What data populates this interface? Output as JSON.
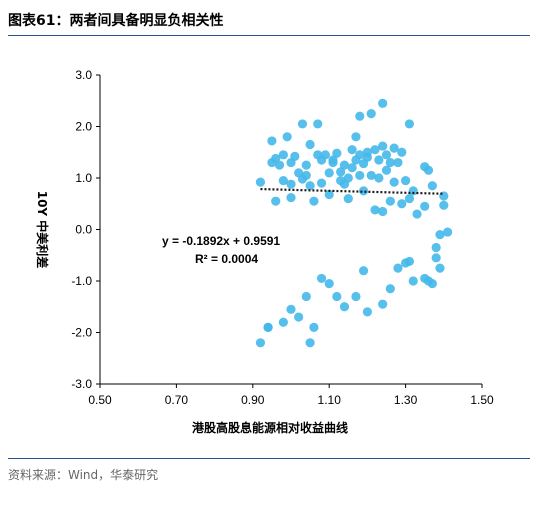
{
  "header": {
    "title": "图表61：两者间具备明显负相关性"
  },
  "footer": {
    "source": "资料来源：Wind，华泰研究"
  },
  "colors": {
    "points": "#45b8ea",
    "trendline": "#1a1a1a",
    "rule": "#2e4f8a"
  },
  "chart_data": {
    "type": "scatter",
    "title": "",
    "xlabel": "港股高股息能源相对收益曲线",
    "ylabel": "10Y 中美利差",
    "xlim": [
      0.5,
      1.5
    ],
    "ylim": [
      -3.0,
      3.0
    ],
    "xticks": [
      "0.50",
      "0.70",
      "0.90",
      "1.10",
      "1.30",
      "1.50"
    ],
    "yticks": [
      "3.0",
      "2.0",
      "1.0",
      "0.0",
      "-1.0",
      "-2.0",
      "-3.0"
    ],
    "grid": false,
    "trendline": {
      "slope": -0.1892,
      "intercept": 0.9591,
      "x_range": [
        0.92,
        1.4
      ]
    },
    "equation": "y = -0.1892x + 0.9591",
    "r2": "R² = 0.0004",
    "points": [
      [
        0.92,
        -2.2
      ],
      [
        0.94,
        -1.9
      ],
      [
        0.94,
        -1.9
      ],
      [
        0.92,
        0.92
      ],
      [
        0.95,
        1.72
      ],
      [
        0.95,
        1.3
      ],
      [
        0.96,
        0.55
      ],
      [
        0.96,
        1.38
      ],
      [
        0.97,
        1.25
      ],
      [
        0.98,
        1.45
      ],
      [
        0.98,
        0.95
      ],
      [
        0.99,
        1.8
      ],
      [
        1.0,
        0.88
      ],
      [
        1.0,
        1.3
      ],
      [
        1.0,
        0.62
      ],
      [
        1.01,
        1.42
      ],
      [
        1.02,
        1.1
      ],
      [
        1.03,
        0.98
      ],
      [
        1.04,
        1.05
      ],
      [
        1.04,
        1.25
      ],
      [
        1.05,
        1.65
      ],
      [
        1.06,
        0.55
      ],
      [
        1.07,
        2.05
      ],
      [
        1.08,
        1.35
      ],
      [
        1.08,
        0.9
      ],
      [
        1.09,
        1.45
      ],
      [
        1.1,
        0.68
      ],
      [
        1.1,
        1.1
      ],
      [
        1.11,
        1.35
      ],
      [
        1.11,
        1.3
      ],
      [
        1.12,
        1.48
      ],
      [
        1.13,
        0.95
      ],
      [
        1.13,
        1.12
      ],
      [
        1.14,
        1.25
      ],
      [
        1.14,
        0.88
      ],
      [
        1.15,
        1.0
      ],
      [
        1.15,
        0.6
      ],
      [
        1.16,
        1.55
      ],
      [
        1.16,
        1.2
      ],
      [
        1.17,
        1.35
      ],
      [
        1.17,
        1.8
      ],
      [
        1.18,
        1.05
      ],
      [
        1.18,
        2.2
      ],
      [
        1.18,
        1.45
      ],
      [
        1.19,
        0.75
      ],
      [
        1.19,
        1.28
      ],
      [
        1.2,
        1.4
      ],
      [
        1.2,
        1.5
      ],
      [
        1.21,
        1.05
      ],
      [
        1.21,
        2.25
      ],
      [
        1.22,
        1.55
      ],
      [
        1.22,
        0.38
      ],
      [
        1.23,
        1.35
      ],
      [
        1.23,
        1.0
      ],
      [
        1.24,
        1.62
      ],
      [
        1.24,
        2.45
      ],
      [
        1.24,
        0.35
      ],
      [
        1.25,
        1.45
      ],
      [
        1.25,
        1.15
      ],
      [
        1.26,
        0.55
      ],
      [
        1.26,
        1.3
      ],
      [
        1.27,
        0.92
      ],
      [
        1.27,
        1.58
      ],
      [
        1.28,
        1.3
      ],
      [
        1.29,
        0.5
      ],
      [
        1.29,
        1.5
      ],
      [
        1.3,
        0.95
      ],
      [
        1.31,
        0.6
      ],
      [
        1.31,
        2.05
      ],
      [
        1.32,
        0.75
      ],
      [
        1.33,
        0.3
      ],
      [
        1.35,
        1.22
      ],
      [
        1.35,
        0.45
      ],
      [
        1.36,
        1.15
      ],
      [
        1.37,
        0.85
      ],
      [
        1.38,
        -0.35
      ],
      [
        1.38,
        -0.55
      ],
      [
        1.39,
        -0.1
      ],
      [
        1.4,
        0.65
      ],
      [
        1.4,
        0.47
      ],
      [
        1.41,
        -0.05
      ],
      [
        1.39,
        -0.75
      ],
      [
        1.37,
        -1.05
      ],
      [
        1.36,
        -1.0
      ],
      [
        1.35,
        -0.95
      ],
      [
        1.32,
        -1.0
      ],
      [
        1.31,
        -0.62
      ],
      [
        1.3,
        -0.65
      ],
      [
        1.28,
        -0.75
      ],
      [
        1.26,
        -1.15
      ],
      [
        1.24,
        -1.45
      ],
      [
        1.2,
        -1.6
      ],
      [
        1.19,
        -0.8
      ],
      [
        1.17,
        -1.3
      ],
      [
        1.14,
        -1.5
      ],
      [
        1.12,
        -1.3
      ],
      [
        1.1,
        -1.05
      ],
      [
        1.08,
        -0.95
      ],
      [
        1.06,
        -1.9
      ],
      [
        1.05,
        -2.2
      ],
      [
        1.04,
        -1.3
      ],
      [
        1.02,
        -1.7
      ],
      [
        1.0,
        -1.55
      ],
      [
        0.98,
        -1.8
      ],
      [
        1.03,
        2.05
      ],
      [
        1.07,
        1.45
      ],
      [
        1.05,
        0.85
      ]
    ]
  }
}
